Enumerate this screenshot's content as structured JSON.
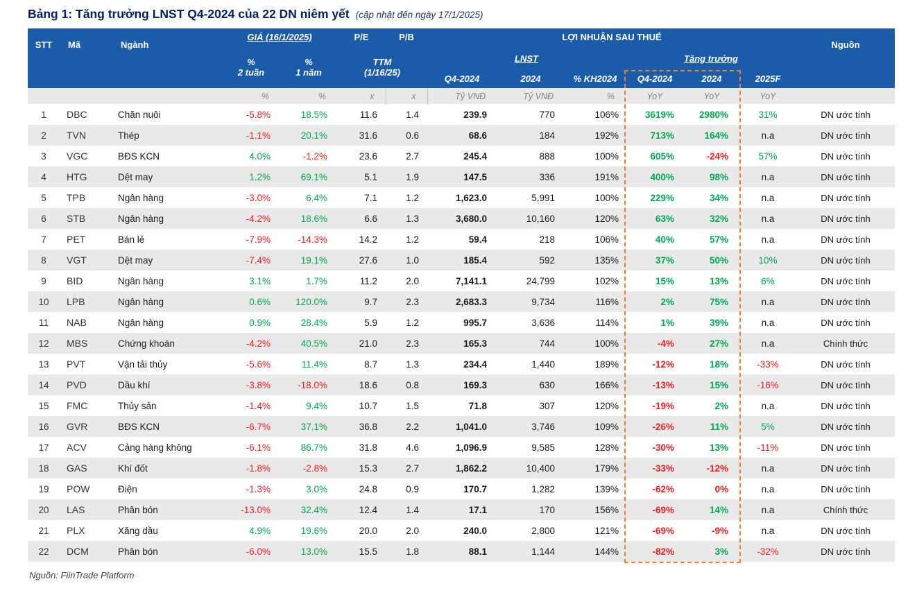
{
  "title": {
    "main": "Bảng 1: Tăng trưởng LNST Q4-2024 của 22 DN niêm yết",
    "note": "(cập nhật đến ngày 17/1/2025)"
  },
  "header": {
    "stt": "STT",
    "ma": "Mã",
    "nganh": "Ngành",
    "gia_group": "GIÁ (16/1/2025)",
    "pct_2w": "%\n2 tuần",
    "pct_1y": "%\n1 năm",
    "pe": "P/E",
    "pb": "P/B",
    "ttm": "TTM\n(1/16/25)",
    "lnst_group": "LỢI NHUẬN SAU THUẾ",
    "lnst_sub": "LNST",
    "growth_sub": "Tăng trưởng",
    "q4_2024": "Q4-2024",
    "y2024": "2024",
    "kh2024": "% KH2024",
    "g_q4": "Q4-2024",
    "g_2024": "2024",
    "g_2025f": "2025F",
    "nguon": "Nguồn"
  },
  "units": {
    "pct": "%",
    "x": "x",
    "ty_vnd": "Tỷ VNĐ",
    "yoy": "YoY"
  },
  "colors": {
    "header_bg": "#1b5ca8",
    "positive": "#00a651",
    "negative": "#ef1f1f",
    "stripe": "#e9e9e9",
    "highlight_border": "#ed7d31",
    "title": "#002060"
  },
  "rows": [
    {
      "stt": "1",
      "ma": "DBC",
      "nganh": "Chăn nuôi",
      "p2w": "-5.8%",
      "p1y": "18.5%",
      "pe": "11.6",
      "pb": "1.4",
      "lnst_q4": "239.9",
      "lnst_2024": "770",
      "kh": "106%",
      "gq4": "3619%",
      "g2024": "2980%",
      "f2025": "31%",
      "nguon": "DN ước tính"
    },
    {
      "stt": "2",
      "ma": "TVN",
      "nganh": "Thép",
      "p2w": "-1.1%",
      "p1y": "20.1%",
      "pe": "31.6",
      "pb": "0.6",
      "lnst_q4": "68.6",
      "lnst_2024": "184",
      "kh": "192%",
      "gq4": "713%",
      "g2024": "164%",
      "f2025": "n.a",
      "nguon": "DN ước tính"
    },
    {
      "stt": "3",
      "ma": "VGC",
      "nganh": "BĐS KCN",
      "p2w": "4.0%",
      "p1y": "-1.2%",
      "pe": "23.6",
      "pb": "2.7",
      "lnst_q4": "245.4",
      "lnst_2024": "888",
      "kh": "100%",
      "gq4": "605%",
      "g2024": "-24%",
      "f2025": "57%",
      "nguon": "DN ước tính"
    },
    {
      "stt": "4",
      "ma": "HTG",
      "nganh": "Dệt may",
      "p2w": "1.2%",
      "p1y": "69.1%",
      "pe": "5.1",
      "pb": "1.9",
      "lnst_q4": "147.5",
      "lnst_2024": "336",
      "kh": "191%",
      "gq4": "400%",
      "g2024": "98%",
      "f2025": "n.a",
      "nguon": "DN ước tính"
    },
    {
      "stt": "5",
      "ma": "TPB",
      "nganh": "Ngân hàng",
      "p2w": "-3.0%",
      "p1y": "6.4%",
      "pe": "7.1",
      "pb": "1.2",
      "lnst_q4": "1,623.0",
      "lnst_2024": "5,991",
      "kh": "100%",
      "gq4": "229%",
      "g2024": "34%",
      "f2025": "n.a",
      "nguon": "DN ước tính"
    },
    {
      "stt": "6",
      "ma": "STB",
      "nganh": "Ngân hàng",
      "p2w": "-4.2%",
      "p1y": "18.6%",
      "pe": "6.6",
      "pb": "1.3",
      "lnst_q4": "3,680.0",
      "lnst_2024": "10,160",
      "kh": "120%",
      "gq4": "63%",
      "g2024": "32%",
      "f2025": "n.a",
      "nguon": "DN ước tính"
    },
    {
      "stt": "7",
      "ma": "PET",
      "nganh": "Bán lẻ",
      "p2w": "-7.9%",
      "p1y": "-14.3%",
      "pe": "14.2",
      "pb": "1.2",
      "lnst_q4": "59.4",
      "lnst_2024": "218",
      "kh": "106%",
      "gq4": "40%",
      "g2024": "57%",
      "f2025": "n.a",
      "nguon": "DN ước tính"
    },
    {
      "stt": "8",
      "ma": "VGT",
      "nganh": "Dệt may",
      "p2w": "-7.4%",
      "p1y": "19.1%",
      "pe": "27.6",
      "pb": "1.0",
      "lnst_q4": "185.4",
      "lnst_2024": "592",
      "kh": "135%",
      "gq4": "37%",
      "g2024": "50%",
      "f2025": "10%",
      "nguon": "DN ước tính"
    },
    {
      "stt": "9",
      "ma": "BID",
      "nganh": "Ngân hàng",
      "p2w": "3.1%",
      "p1y": "1.7%",
      "pe": "11.2",
      "pb": "2.0",
      "lnst_q4": "7,141.1",
      "lnst_2024": "24,799",
      "kh": "102%",
      "gq4": "15%",
      "g2024": "13%",
      "f2025": "6%",
      "nguon": "DN ước tính"
    },
    {
      "stt": "10",
      "ma": "LPB",
      "nganh": "Ngân hàng",
      "p2w": "0.6%",
      "p1y": "120.0%",
      "pe": "9.7",
      "pb": "2.3",
      "lnst_q4": "2,683.3",
      "lnst_2024": "9,734",
      "kh": "116%",
      "gq4": "2%",
      "g2024": "75%",
      "f2025": "n.a",
      "nguon": "DN ước tính"
    },
    {
      "stt": "11",
      "ma": "NAB",
      "nganh": "Ngân hàng",
      "p2w": "0.9%",
      "p1y": "28.4%",
      "pe": "5.9",
      "pb": "1.2",
      "lnst_q4": "995.7",
      "lnst_2024": "3,636",
      "kh": "114%",
      "gq4": "1%",
      "g2024": "39%",
      "f2025": "n.a",
      "nguon": "DN ước tính"
    },
    {
      "stt": "12",
      "ma": "MBS",
      "nganh": "Chứng khoán",
      "p2w": "-4.2%",
      "p1y": "40.5%",
      "pe": "21.0",
      "pb": "2.3",
      "lnst_q4": "165.3",
      "lnst_2024": "744",
      "kh": "100%",
      "gq4": "-4%",
      "g2024": "27%",
      "f2025": "n.a",
      "nguon": "Chính thức"
    },
    {
      "stt": "13",
      "ma": "PVT",
      "nganh": "Vận tải thủy",
      "p2w": "-5.6%",
      "p1y": "11.4%",
      "pe": "8.7",
      "pb": "1.3",
      "lnst_q4": "234.4",
      "lnst_2024": "1,440",
      "kh": "189%",
      "gq4": "-12%",
      "g2024": "18%",
      "f2025": "-33%",
      "nguon": "DN ước tính"
    },
    {
      "stt": "14",
      "ma": "PVD",
      "nganh": "Dầu khí",
      "p2w": "-3.8%",
      "p1y": "-18.0%",
      "pe": "18.6",
      "pb": "0.8",
      "lnst_q4": "169.3",
      "lnst_2024": "630",
      "kh": "166%",
      "gq4": "-13%",
      "g2024": "15%",
      "f2025": "-16%",
      "nguon": "DN ước tính"
    },
    {
      "stt": "15",
      "ma": "FMC",
      "nganh": "Thủy sản",
      "p2w": "-1.4%",
      "p1y": "9.4%",
      "pe": "10.7",
      "pb": "1.5",
      "lnst_q4": "71.8",
      "lnst_2024": "307",
      "kh": "120%",
      "gq4": "-19%",
      "g2024": "2%",
      "f2025": "n.a",
      "nguon": "DN ước tính"
    },
    {
      "stt": "16",
      "ma": "GVR",
      "nganh": "BĐS KCN",
      "p2w": "-6.7%",
      "p1y": "37.1%",
      "pe": "36.8",
      "pb": "2.2",
      "lnst_q4": "1,041.0",
      "lnst_2024": "3,746",
      "kh": "109%",
      "gq4": "-26%",
      "g2024": "11%",
      "f2025": "5%",
      "nguon": "DN ước tính"
    },
    {
      "stt": "17",
      "ma": "ACV",
      "nganh": "Cảng hàng không",
      "p2w": "-6.1%",
      "p1y": "86.7%",
      "pe": "31.8",
      "pb": "4.6",
      "lnst_q4": "1,096.9",
      "lnst_2024": "9,585",
      "kh": "128%",
      "gq4": "-30%",
      "g2024": "13%",
      "f2025": "-11%",
      "nguon": "DN ước tính"
    },
    {
      "stt": "18",
      "ma": "GAS",
      "nganh": "Khí đốt",
      "p2w": "-1.8%",
      "p1y": "-2.8%",
      "pe": "15.3",
      "pb": "2.7",
      "lnst_q4": "1,862.2",
      "lnst_2024": "10,400",
      "kh": "179%",
      "gq4": "-33%",
      "g2024": "-12%",
      "f2025": "n.a",
      "nguon": "DN ước tính"
    },
    {
      "stt": "19",
      "ma": "POW",
      "nganh": "Điện",
      "p2w": "-1.3%",
      "p1y": "3.0%",
      "pe": "24.8",
      "pb": "0.9",
      "lnst_q4": "170.7",
      "lnst_2024": "1,282",
      "kh": "139%",
      "gq4": "-62%",
      "g2024": "0%",
      "f2025": "n.a",
      "nguon": "DN ước tính"
    },
    {
      "stt": "20",
      "ma": "LAS",
      "nganh": "Phân bón",
      "p2w": "-13.0%",
      "p1y": "32.4%",
      "pe": "12.4",
      "pb": "1.4",
      "lnst_q4": "17.1",
      "lnst_2024": "170",
      "kh": "156%",
      "gq4": "-69%",
      "g2024": "14%",
      "f2025": "n.a",
      "nguon": "Chính thức"
    },
    {
      "stt": "21",
      "ma": "PLX",
      "nganh": "Xăng dầu",
      "p2w": "4.9%",
      "p1y": "19.6%",
      "pe": "20.0",
      "pb": "2.0",
      "lnst_q4": "240.0",
      "lnst_2024": "2,800",
      "kh": "121%",
      "gq4": "-69%",
      "g2024": "-9%",
      "f2025": "n.a",
      "nguon": "DN ước tính"
    },
    {
      "stt": "22",
      "ma": "DCM",
      "nganh": "Phân bón",
      "p2w": "-6.0%",
      "p1y": "13.0%",
      "pe": "15.5",
      "pb": "1.8",
      "lnst_q4": "88.1",
      "lnst_2024": "1,144",
      "kh": "144%",
      "gq4": "-82%",
      "g2024": "3%",
      "f2025": "-32%",
      "nguon": "DN ước tính"
    }
  ],
  "footer": {
    "source": "Nguồn: FiinTrade Platform"
  }
}
